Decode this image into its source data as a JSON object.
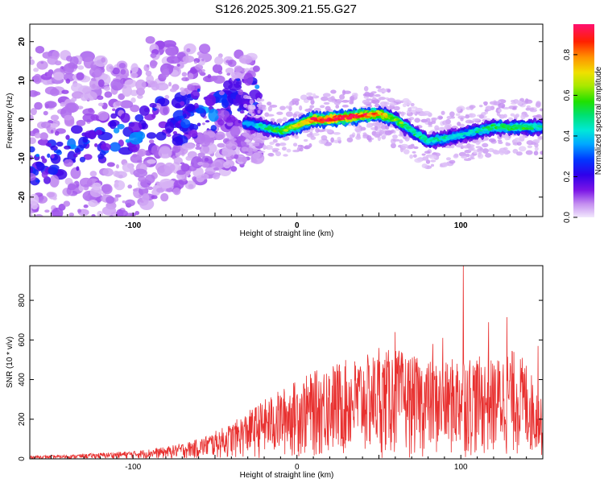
{
  "figure_title": "S126.2025.309.21.55.G27",
  "chart_data": [
    {
      "type": "heatmap",
      "title": "S126.2025.309.21.55.G27",
      "xlabel": "Height of straight line (km)",
      "ylabel": "Frequency (Hz)",
      "xlim": [
        -163,
        150
      ],
      "ylim": [
        -25,
        24.5
      ],
      "xticks": [
        -100,
        0,
        100
      ],
      "xtick_labels": [
        "-100",
        "0",
        "100"
      ],
      "yticks": [
        -20,
        -10,
        0,
        10,
        20
      ],
      "ytick_labels": [
        "-20",
        "-10",
        "0",
        "10",
        "20"
      ],
      "colorbar": {
        "label": "Normalized spectral amplitude",
        "range": [
          0,
          0.95
        ],
        "ticks": [
          0,
          0.2,
          0.4,
          0.6,
          0.8
        ],
        "tick_labels": [
          "0.0",
          "0.2",
          "0.4",
          "0.6",
          "0.8"
        ]
      },
      "ridge": {
        "x": [
          -30,
          -20,
          -10,
          0,
          10,
          20,
          30,
          40,
          50,
          60,
          70,
          80,
          90,
          100,
          110,
          120,
          130,
          140,
          148
        ],
        "y": [
          -1,
          -2,
          -3,
          -1.5,
          0,
          0,
          0.5,
          1,
          1.5,
          0,
          -3,
          -5.5,
          -5,
          -4,
          -3,
          -2,
          -2,
          -2,
          -2
        ],
        "amp": [
          0.35,
          0.45,
          0.55,
          0.7,
          0.85,
          0.9,
          0.9,
          0.85,
          0.75,
          0.6,
          0.5,
          0.45,
          0.45,
          0.4,
          0.45,
          0.5,
          0.55,
          0.5,
          0.45
        ]
      }
    },
    {
      "type": "line",
      "xlabel": "Height of straight line (km)",
      "ylabel": "SNR (10 * v/v)",
      "xlim": [
        -163,
        150
      ],
      "ylim": [
        0,
        975
      ],
      "xticks": [
        -100,
        0,
        100
      ],
      "xtick_labels": [
        "-100",
        "0",
        "100"
      ],
      "yticks": [
        0,
        200,
        400,
        600,
        800
      ],
      "ytick_labels": [
        "0",
        "200",
        "400",
        "600",
        "800"
      ],
      "color": "#e8302f",
      "envelope": {
        "x": [
          -163,
          -140,
          -120,
          -100,
          -80,
          -60,
          -40,
          -30,
          -20,
          -10,
          0,
          10,
          20,
          30,
          40,
          50,
          60,
          70,
          80,
          90,
          100,
          110,
          120,
          130,
          140,
          150
        ],
        "max": [
          15,
          20,
          30,
          40,
          60,
          100,
          180,
          240,
          300,
          350,
          400,
          440,
          480,
          500,
          520,
          540,
          560,
          520,
          500,
          480,
          540,
          520,
          500,
          560,
          500,
          280
        ]
      },
      "peaks": [
        {
          "x": 101.5,
          "y": 975
        },
        {
          "x": 60,
          "y": 640
        },
        {
          "x": 117,
          "y": 690
        },
        {
          "x": 128,
          "y": 715
        },
        {
          "x": 147,
          "y": 570
        },
        {
          "x": 89,
          "y": 610
        },
        {
          "x": 83,
          "y": 580
        },
        {
          "x": 50,
          "y": 560
        },
        {
          "x": 18,
          "y": 430
        }
      ]
    }
  ]
}
